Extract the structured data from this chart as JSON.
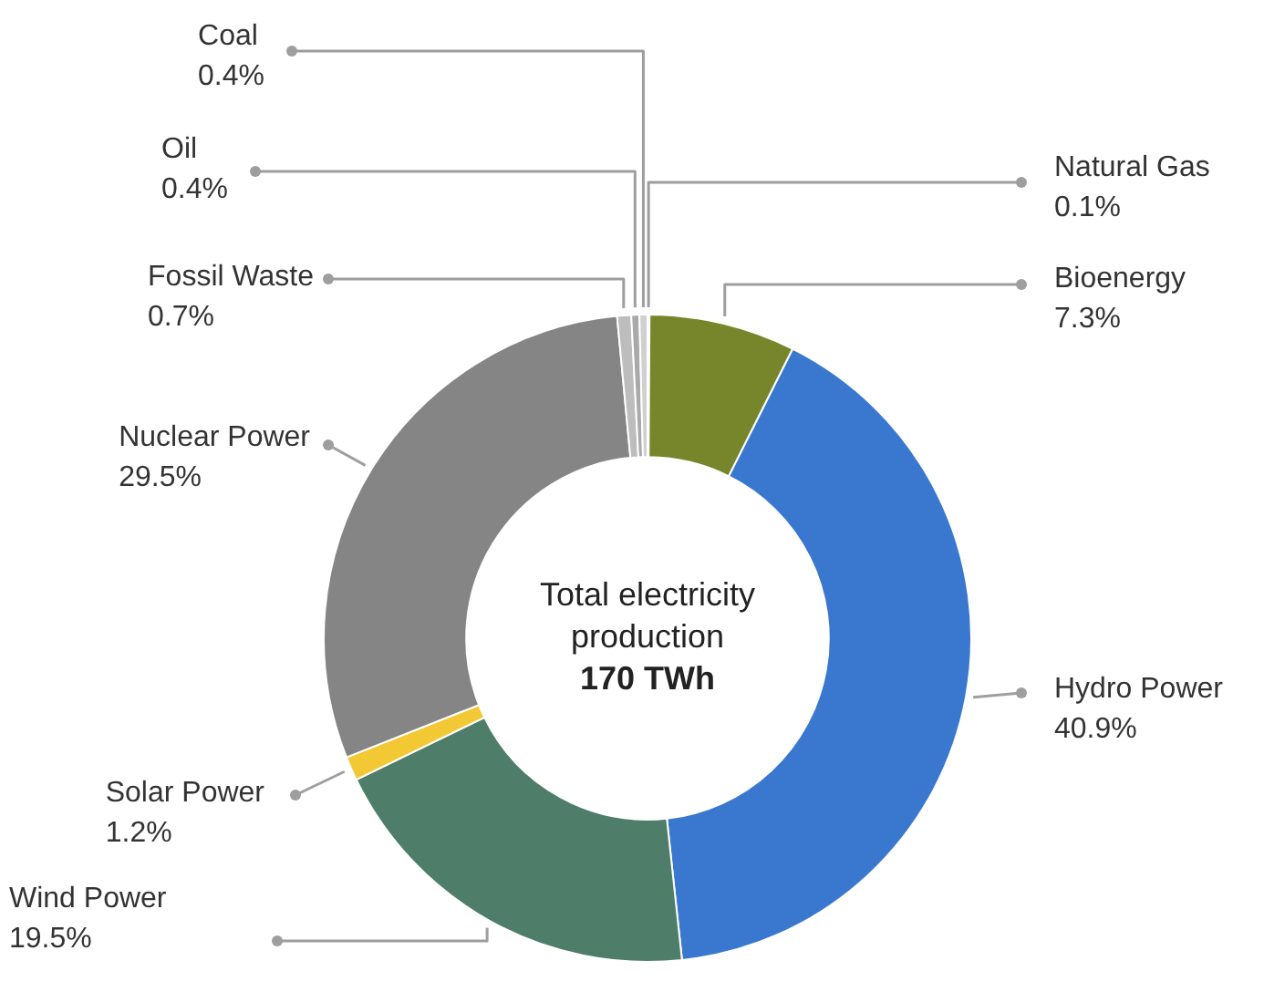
{
  "chart_data": {
    "type": "donut",
    "categories": [
      "Natural Gas",
      "Bioenergy",
      "Hydro Power",
      "Wind Power",
      "Solar Power",
      "Nuclear Power",
      "Fossil Waste",
      "Oil",
      "Coal"
    ],
    "values": [
      0.1,
      7.3,
      40.9,
      19.5,
      1.2,
      29.5,
      0.7,
      0.4,
      0.4
    ],
    "value_labels": [
      "0.1%",
      "7.3%",
      "40.9%",
      "19.5%",
      "1.2%",
      "29.5%",
      "0.7%",
      "0.4%",
      "0.4%"
    ],
    "colors": [
      "#111111",
      "#77862a",
      "#3a78d0",
      "#4e7e6a",
      "#f2c935",
      "#858585",
      "#bdbdbd",
      "#a9a9a9",
      "#d0d0d0"
    ],
    "annotations": [
      "Total electricity production",
      "170 TWh"
    ],
    "legend": false
  }
}
